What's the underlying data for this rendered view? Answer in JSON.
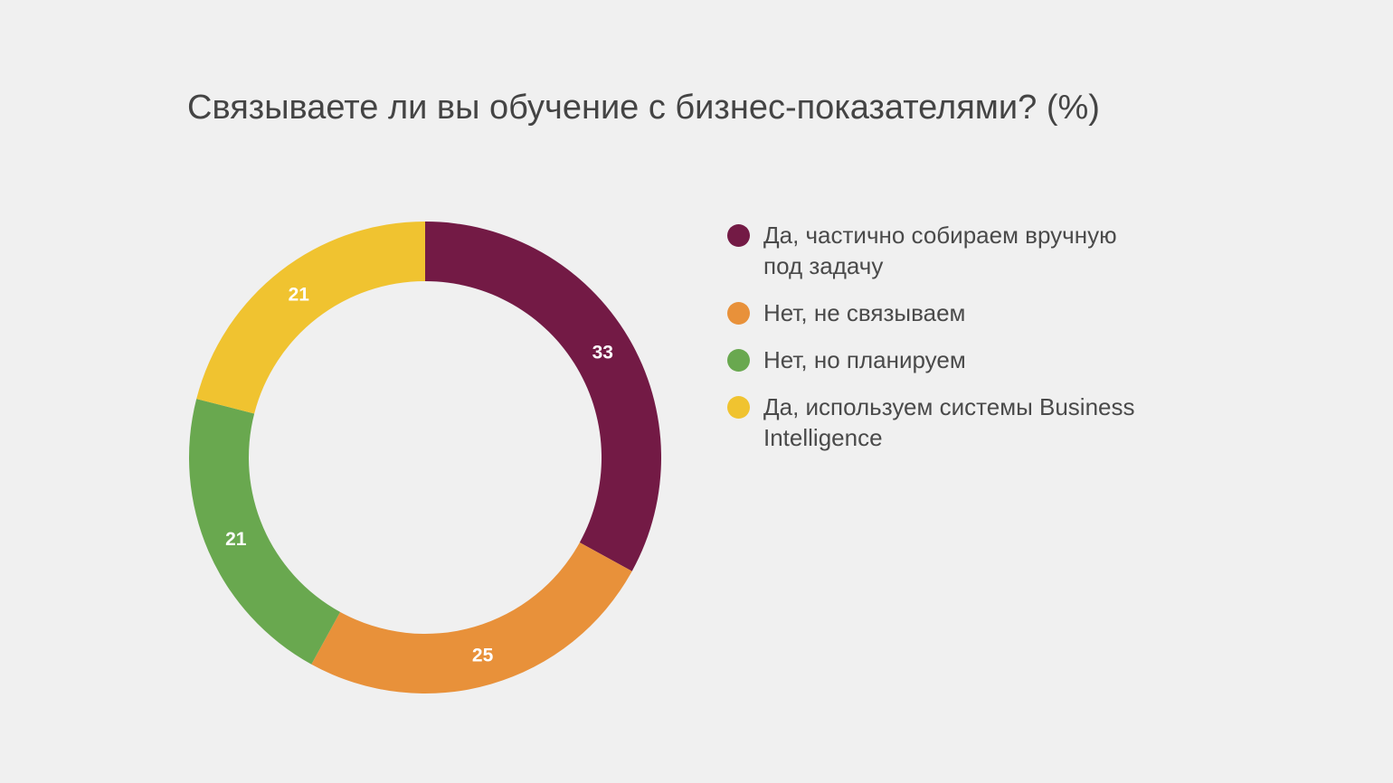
{
  "chart_data": {
    "type": "pie",
    "title": "Связываете ли вы обучение с бизнес-показателями? (%)",
    "categories": [
      "Да, частично собираем вручную под задачу",
      "Нет, не связываем",
      "Нет, но планируем",
      "Да, используем системы Business Intelligence"
    ],
    "values": [
      33,
      25,
      21,
      21
    ],
    "colors": [
      "#731a45",
      "#e8913a",
      "#69a84f",
      "#f0c330"
    ],
    "legend_position": "right"
  },
  "legend": [
    {
      "label": "Да, частично собираем вручную под задачу",
      "color": "#731a45"
    },
    {
      "label": "Нет, не связываем",
      "color": "#e8913a"
    },
    {
      "label": "Нет, но планируем",
      "color": "#69a84f"
    },
    {
      "label": "Да, используем системы Business Intelligence",
      "color": "#f0c330"
    }
  ]
}
